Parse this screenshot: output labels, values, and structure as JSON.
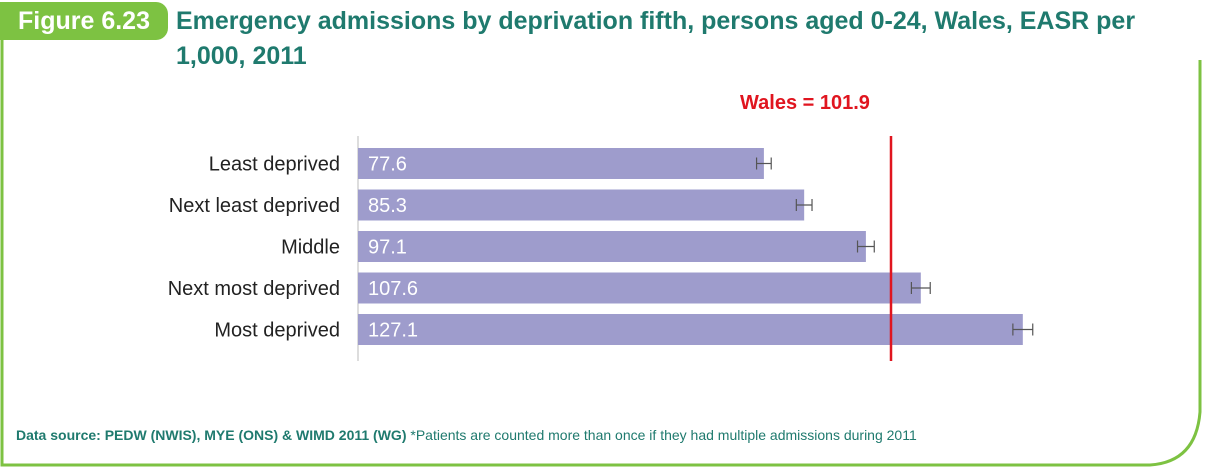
{
  "figure": {
    "number": "Figure 6.23",
    "title": "Emergency admissions by deprivation fifth, persons aged 0-24, Wales, EASR per 1,000, 2011"
  },
  "reference": {
    "label": "Wales = 101.9",
    "value": 101.9
  },
  "source": {
    "label": "Data source: PEDW (NWIS), MYE (ONS) & WIMD 2011 (WG)",
    "note": "*Patients are counted more than once if they had multiple admissions during 2011"
  },
  "colors": {
    "badge": "#7dc242",
    "title": "#1f7a6e",
    "bar": "#9e9ccc",
    "reference_line": "#e0151f",
    "error_bar": "#555555"
  },
  "chart_data": {
    "type": "bar",
    "orientation": "horizontal",
    "title": "Emergency admissions by deprivation fifth, persons aged 0-24, Wales, EASR per 1,000, 2011",
    "categories": [
      "Least deprived",
      "Next least deprived",
      "Middle",
      "Next most deprived",
      "Most deprived"
    ],
    "values": [
      77.6,
      85.3,
      97.1,
      107.6,
      127.1
    ],
    "value_labels": [
      "77.6",
      "85.3",
      "97.1",
      "107.6",
      "127.1"
    ],
    "error_bars": [
      [
        76.2,
        79.0
      ],
      [
        83.8,
        86.8
      ],
      [
        95.5,
        98.7
      ],
      [
        105.8,
        109.4
      ],
      [
        125.2,
        129.0
      ]
    ],
    "reference_line": {
      "label": "Wales = 101.9",
      "value": 101.9
    },
    "xlim": [
      0,
      135
    ],
    "grid": false,
    "legend": "none"
  }
}
